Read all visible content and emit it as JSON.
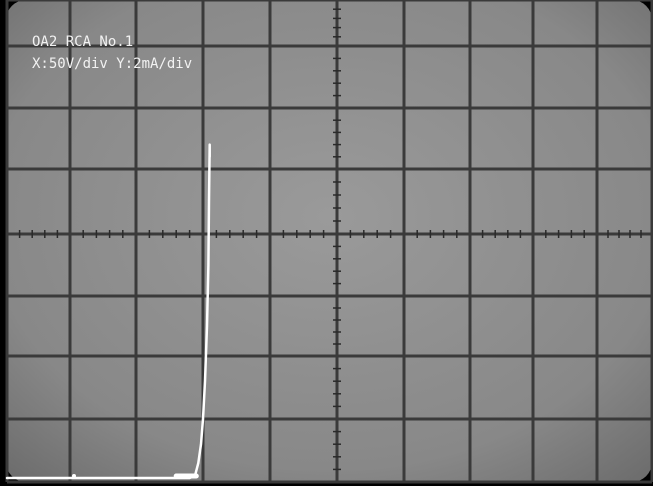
{
  "chart_data": {
    "type": "line",
    "title": "OA2 RCA No.1",
    "subtitle": "X:50V/div Y:2mA/div",
    "x_divisions": 10,
    "y_divisions": 8,
    "grid": true,
    "trace_color": "#ffffff",
    "screen_color": "#8c8c8c",
    "grid_color": "#3a3a3a",
    "series": [
      {
        "x_div": [
          0.0,
          2.5,
          2.8,
          2.88,
          2.93,
          2.97,
          3.0,
          3.03,
          3.06,
          3.08,
          3.09,
          3.1,
          3.1
        ],
        "y_div": [
          0.0,
          0.0,
          0.0,
          0.1,
          0.3,
          0.6,
          1.0,
          1.6,
          2.5,
          3.5,
          4.5,
          5.4,
          5.2
        ]
      }
    ]
  }
}
